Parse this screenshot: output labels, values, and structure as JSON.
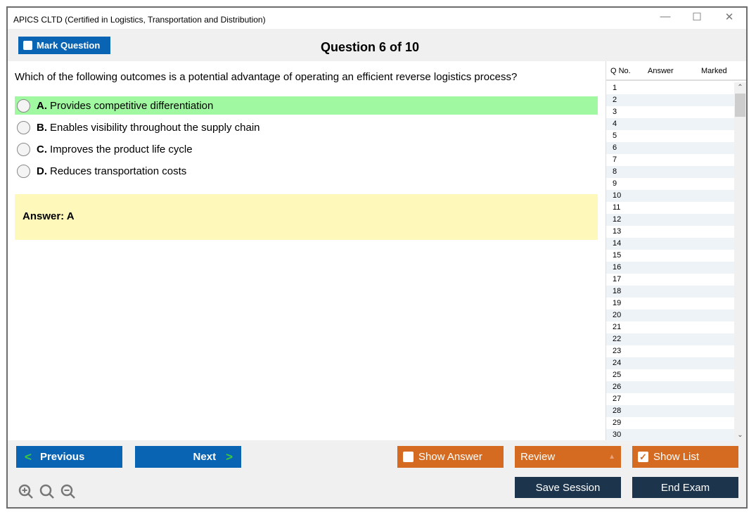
{
  "window": {
    "title": "APICS CLTD (Certified in Logistics, Transportation and Distribution)",
    "minimize": "—",
    "maximize": "☐",
    "close": "✕"
  },
  "toolbar": {
    "mark_label": "Mark Question",
    "question_counter": "Question 6 of 10"
  },
  "question": {
    "text": "Which of the following outcomes is a potential advantage of operating an efficient reverse logistics process?",
    "options": [
      {
        "letter": "A.",
        "text": "Provides competitive differentiation"
      },
      {
        "letter": "B.",
        "text": "Enables visibility throughout the supply chain"
      },
      {
        "letter": "C.",
        "text": "Improves the product life cycle"
      },
      {
        "letter": "D.",
        "text": "Reduces transportation costs"
      }
    ],
    "highlighted_option": "A",
    "answer": "Answer: A"
  },
  "list": {
    "headers": [
      "Q No.",
      "Answer",
      "Marked"
    ],
    "rows": [
      "1",
      "2",
      "3",
      "4",
      "5",
      "6",
      "7",
      "8",
      "9",
      "10",
      "11",
      "12",
      "13",
      "14",
      "15",
      "16",
      "17",
      "18",
      "19",
      "20",
      "21",
      "22",
      "23",
      "24",
      "25",
      "26",
      "27",
      "28",
      "29",
      "30"
    ]
  },
  "buttons": {
    "previous": "Previous",
    "next": "Next",
    "show_answer": "Show Answer",
    "review": "Review",
    "show_list": "Show List",
    "save_session": "Save Session",
    "end_exam": "End Exam"
  },
  "state": {
    "show_answer_checked": false,
    "show_list_checked": true
  },
  "icons": [
    "zoom-in-icon",
    "zoom-reset-icon",
    "zoom-out-icon"
  ]
}
